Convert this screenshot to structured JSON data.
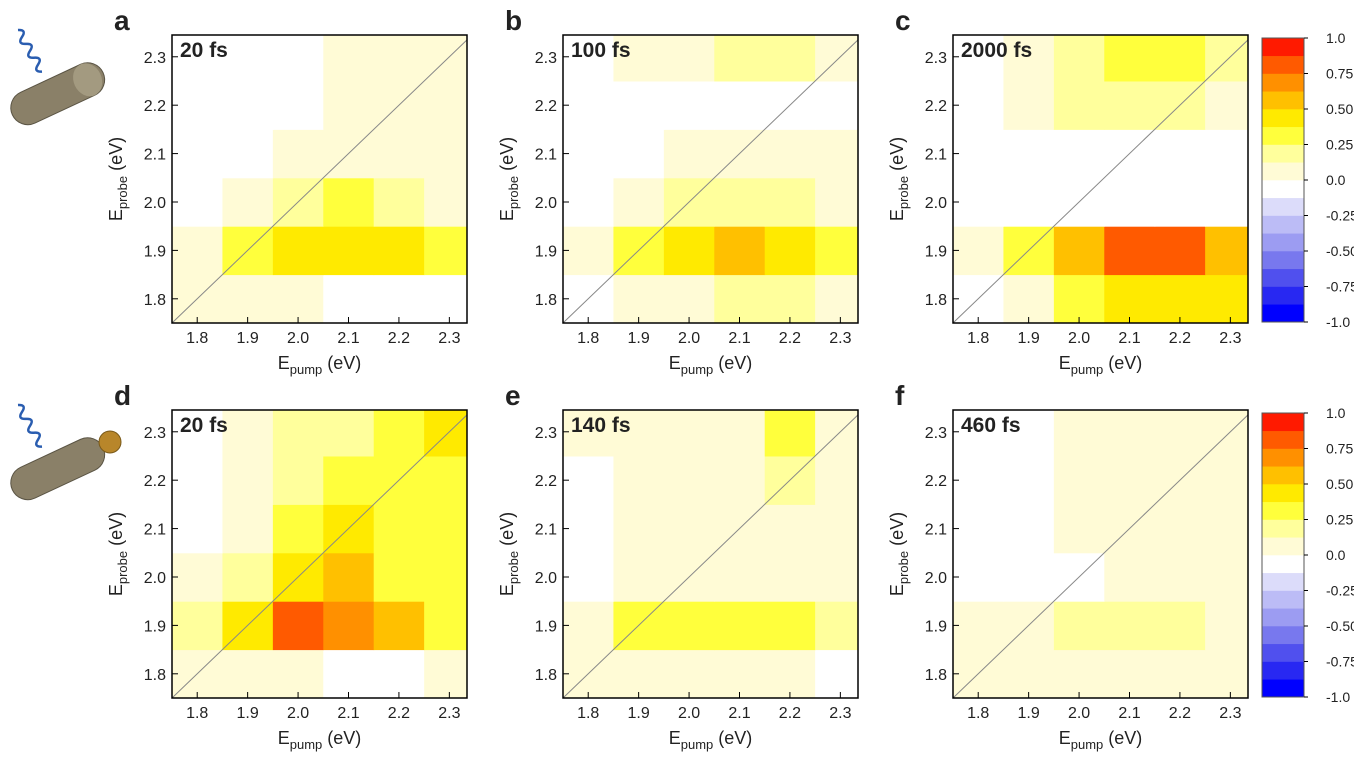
{
  "chart_data": [
    {
      "type": "heatmap",
      "panel_label": "a",
      "annotation": "20 fs",
      "xlabel": [
        "E",
        "pump",
        "(eV)"
      ],
      "ylabel": [
        "E",
        "probe",
        "(eV)"
      ],
      "x": [
        1.8,
        1.9,
        2.0,
        2.1,
        2.2,
        2.3
      ],
      "y": [
        1.8,
        1.9,
        2.0,
        2.1,
        2.2,
        2.3
      ],
      "z": [
        [
          0.05,
          0.05,
          0.05,
          -0.1,
          -0.1,
          -0.05
        ],
        [
          0.1,
          0.3,
          0.4,
          0.45,
          0.4,
          0.3
        ],
        [
          0,
          0.05,
          0.15,
          0.3,
          0.15,
          0.1
        ],
        [
          0,
          0,
          0.1,
          0.1,
          0.1,
          0.1
        ],
        [
          0,
          0,
          0,
          0.05,
          0.1,
          0.1
        ],
        [
          0,
          0,
          0,
          0.1,
          0.1,
          0.1
        ]
      ],
      "xlim": [
        1.75,
        2.335
      ],
      "ylim": [
        1.75,
        2.345
      ],
      "xticks": [
        1.8,
        1.9,
        {
          "value": 2,
          "label": "2.0"
        },
        2.1,
        2.2,
        2.3
      ],
      "yticks": [
        1.8,
        1.9,
        {
          "value": 2,
          "label": "2.0"
        },
        2.1,
        2.2,
        2.3
      ],
      "diagonal": true
    },
    {
      "type": "heatmap",
      "panel_label": "b",
      "annotation": "100 fs",
      "xlabel": [
        "E",
        "pump",
        "(eV)"
      ],
      "ylabel": [
        "E",
        "probe",
        "(eV)"
      ],
      "x": [
        1.8,
        1.9,
        2.0,
        2.1,
        2.2,
        2.3
      ],
      "y": [
        1.8,
        1.9,
        2.0,
        2.1,
        2.2,
        2.3
      ],
      "z": [
        [
          0,
          0.05,
          0.1,
          0.15,
          0.15,
          0.1
        ],
        [
          0.05,
          0.3,
          0.45,
          0.55,
          0.45,
          0.3
        ],
        [
          0,
          0.1,
          0.15,
          0.25,
          0.15,
          0.1
        ],
        [
          0,
          0,
          0.1,
          0.1,
          0.1,
          0.05
        ],
        [
          0,
          0,
          0,
          0,
          0,
          0
        ],
        [
          0,
          0.1,
          0.1,
          0.15,
          0.15,
          0.1
        ]
      ],
      "xlim": [
        1.75,
        2.335
      ],
      "ylim": [
        1.75,
        2.345
      ],
      "xticks": [
        1.8,
        1.9,
        {
          "value": 2,
          "label": "2.0"
        },
        2.1,
        2.2,
        2.3
      ],
      "yticks": [
        1.8,
        1.9,
        {
          "value": 2,
          "label": "2.0"
        },
        2.1,
        2.2,
        2.3
      ],
      "diagonal": true
    },
    {
      "type": "heatmap",
      "panel_label": "c",
      "annotation": "2000 fs",
      "xlabel": [
        "E",
        "pump",
        "(eV)"
      ],
      "ylabel": [
        "E",
        "probe",
        "(eV)"
      ],
      "x": [
        1.8,
        1.9,
        2.0,
        2.1,
        2.2,
        2.3
      ],
      "y": [
        1.8,
        1.9,
        2.0,
        2.1,
        2.2,
        2.3
      ],
      "z": [
        [
          0,
          0.05,
          0.3,
          0.5,
          0.5,
          0.4
        ],
        [
          0.05,
          0.3,
          0.55,
          0.8,
          0.85,
          0.6
        ],
        [
          0,
          0,
          -0.05,
          -0.1,
          -0.05,
          0
        ],
        [
          0,
          0,
          0,
          0,
          0,
          0
        ],
        [
          0,
          0.1,
          0.15,
          0.2,
          0.2,
          0.1
        ],
        [
          0,
          0.1,
          0.2,
          0.3,
          0.3,
          0.2
        ]
      ],
      "xlim": [
        1.75,
        2.335
      ],
      "ylim": [
        1.75,
        2.345
      ],
      "xticks": [
        1.8,
        1.9,
        {
          "value": 2,
          "label": "2.0"
        },
        2.1,
        2.2,
        2.3
      ],
      "yticks": [
        1.8,
        1.9,
        {
          "value": 2,
          "label": "2.0"
        },
        2.1,
        2.2,
        2.3
      ],
      "diagonal": true
    },
    {
      "type": "colorbar",
      "zlim": [
        -1,
        1
      ],
      "zticks": [
        {
          "value": 1,
          "label": "1.0"
        },
        0.75,
        {
          "value": 0.5,
          "label": "0.50"
        },
        0.25,
        {
          "value": 0,
          "label": "0.0"
        },
        -0.25,
        {
          "value": -0.5,
          "label": "-0.50"
        },
        -0.75,
        {
          "value": -1,
          "label": "-1.0"
        }
      ],
      "colors": [
        "#0000ff",
        "#2828f2",
        "#5050ee",
        "#7878ee",
        "#9c9cf2",
        "#bcbcf6",
        "#dcdcfa",
        "#ffffff",
        "#fffbd6",
        "#ffff9c",
        "#ffff3c",
        "#ffea00",
        "#ffc000",
        "#ff9000",
        "#ff5a00",
        "#ff1a00"
      ]
    },
    {
      "type": "heatmap",
      "panel_label": "d",
      "annotation": "20 fs",
      "xlabel": [
        "E",
        "pump",
        "(eV)"
      ],
      "ylabel": [
        "E",
        "probe",
        "(eV)"
      ],
      "x": [
        1.8,
        1.9,
        2.0,
        2.1,
        2.2,
        2.3
      ],
      "y": [
        1.8,
        1.9,
        2.0,
        2.1,
        2.2,
        2.3
      ],
      "z": [
        [
          0.1,
          0.1,
          0.1,
          -0.05,
          -0.1,
          0.05
        ],
        [
          0.2,
          0.4,
          0.8,
          0.65,
          0.55,
          0.3
        ],
        [
          0.05,
          0.2,
          0.4,
          0.55,
          0.35,
          0.3
        ],
        [
          0,
          0.1,
          0.3,
          0.45,
          0.3,
          0.3
        ],
        [
          0,
          0.1,
          0.2,
          0.3,
          0.35,
          0.3
        ],
        [
          0,
          0.1,
          0.15,
          0.25,
          0.3,
          0.4
        ]
      ],
      "xlim": [
        1.75,
        2.335
      ],
      "ylim": [
        1.75,
        2.345
      ],
      "xticks": [
        1.8,
        1.9,
        {
          "value": 2,
          "label": "2.0"
        },
        2.1,
        2.2,
        2.3
      ],
      "yticks": [
        1.8,
        1.9,
        {
          "value": 2,
          "label": "2.0"
        },
        2.1,
        2.2,
        2.3
      ],
      "diagonal": true
    },
    {
      "type": "heatmap",
      "panel_label": "e",
      "annotation": "140 fs",
      "xlabel": [
        "E",
        "pump",
        "(eV)"
      ],
      "ylabel": [
        "E",
        "probe",
        "(eV)"
      ],
      "x": [
        1.8,
        1.9,
        2.0,
        2.1,
        2.2,
        2.3
      ],
      "y": [
        1.8,
        1.9,
        2.0,
        2.1,
        2.2,
        2.3
      ],
      "z": [
        [
          0.1,
          0.1,
          0.1,
          0.1,
          0.05,
          0
        ],
        [
          0.1,
          0.3,
          0.3,
          0.3,
          0.35,
          0.2
        ],
        [
          0,
          0.1,
          0.1,
          0.1,
          0.1,
          0.1
        ],
        [
          0,
          0.1,
          0.1,
          0.1,
          0.1,
          0.1
        ],
        [
          0,
          0.1,
          0.1,
          0.1,
          0.2,
          0.1
        ],
        [
          0.1,
          0.1,
          0.1,
          0.1,
          0.3,
          0.1
        ]
      ],
      "xlim": [
        1.75,
        2.335
      ],
      "ylim": [
        1.75,
        2.345
      ],
      "xticks": [
        1.8,
        1.9,
        {
          "value": 2,
          "label": "2.0"
        },
        2.1,
        2.2,
        2.3
      ],
      "yticks": [
        1.8,
        1.9,
        {
          "value": 2,
          "label": "2.0"
        },
        2.1,
        2.2,
        2.3
      ],
      "diagonal": true
    },
    {
      "type": "heatmap",
      "panel_label": "f",
      "annotation": "460 fs",
      "xlabel": [
        "E",
        "pump",
        "(eV)"
      ],
      "ylabel": [
        "E",
        "probe",
        "(eV)"
      ],
      "x": [
        1.8,
        1.9,
        2.0,
        2.1,
        2.2,
        2.3
      ],
      "y": [
        1.8,
        1.9,
        2.0,
        2.1,
        2.2,
        2.3
      ],
      "z": [
        [
          0.1,
          0.1,
          0.1,
          0.1,
          0.1,
          0.1
        ],
        [
          0.1,
          0.1,
          0.15,
          0.15,
          0.15,
          0.1
        ],
        [
          0,
          0,
          0,
          0.1,
          0.1,
          0.1
        ],
        [
          0,
          0,
          0.1,
          0.1,
          0.1,
          0.1
        ],
        [
          0,
          0,
          0.1,
          0.1,
          0.1,
          0.1
        ],
        [
          0,
          0,
          0.1,
          0.1,
          0.1,
          0.1
        ]
      ],
      "xlim": [
        1.75,
        2.335
      ],
      "ylim": [
        1.75,
        2.345
      ],
      "xticks": [
        1.8,
        1.9,
        {
          "value": 2,
          "label": "2.0"
        },
        2.1,
        2.2,
        2.3
      ],
      "yticks": [
        1.8,
        1.9,
        {
          "value": 2,
          "label": "2.0"
        },
        2.1,
        2.2,
        2.3
      ],
      "diagonal": true
    },
    {
      "type": "colorbar",
      "zlim": [
        -1,
        1
      ],
      "zticks": [
        {
          "value": 1,
          "label": "1.0"
        },
        0.75,
        {
          "value": 0.5,
          "label": "0.50"
        },
        0.25,
        {
          "value": 0,
          "label": "0.0"
        },
        -0.25,
        {
          "value": -0.5,
          "label": "-0.50"
        },
        -0.75,
        {
          "value": -1,
          "label": "-1.0"
        }
      ],
      "colors": [
        "#0000ff",
        "#2828f2",
        "#5050ee",
        "#7878ee",
        "#9c9cf2",
        "#bcbcf6",
        "#dcdcfa",
        "#ffffff",
        "#fffbd6",
        "#ffff9c",
        "#ffff3c",
        "#ffea00",
        "#ffc000",
        "#ff9000",
        "#ff5a00",
        "#ff1a00"
      ]
    }
  ]
}
